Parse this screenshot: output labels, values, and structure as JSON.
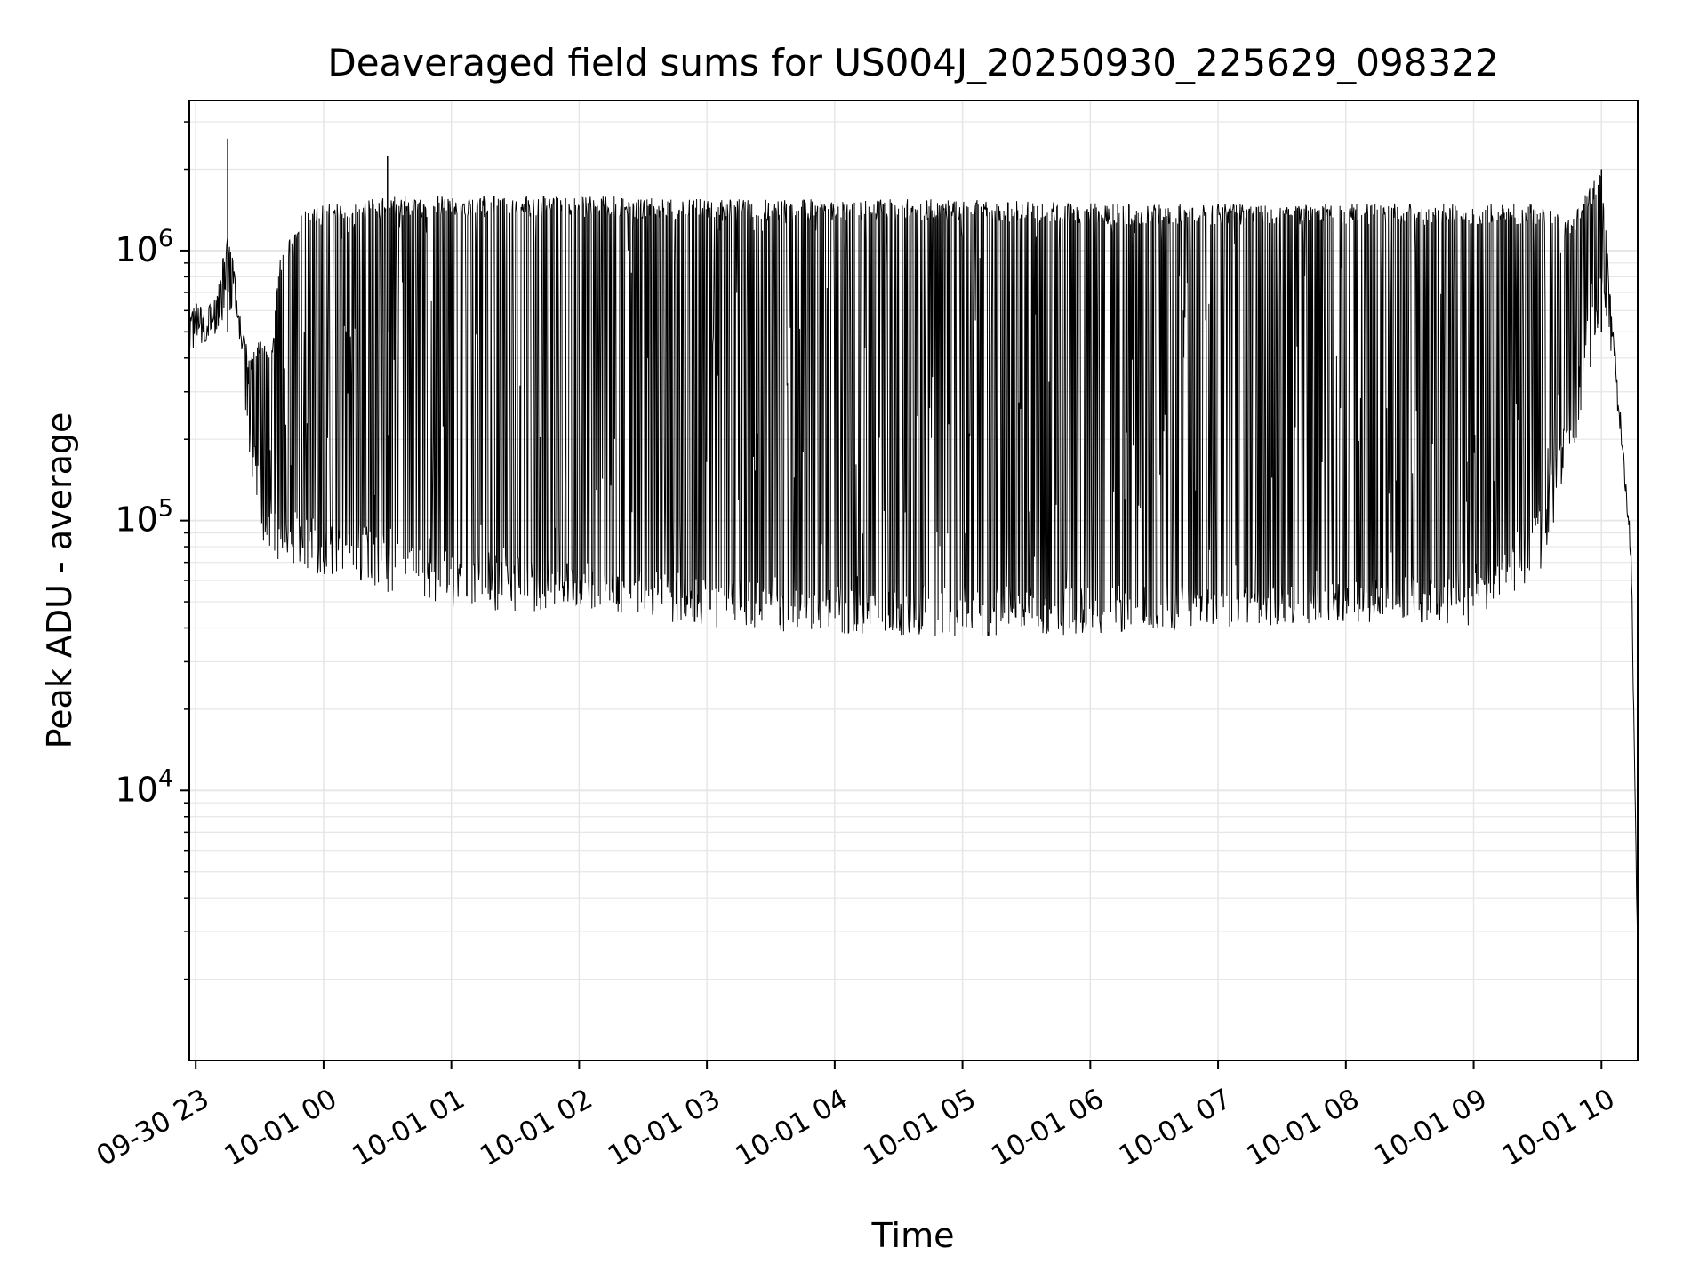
{
  "chart_data": {
    "type": "line",
    "title": "Deaveraged field sums for US004J_20250930_225629_098322",
    "xlabel": "Time",
    "ylabel": "Peak ADU - average",
    "x_tick_labels": [
      "09-30 23",
      "10-01 00",
      "10-01 01",
      "10-01 02",
      "10-01 03",
      "10-01 04",
      "10-01 05",
      "10-01 06",
      "10-01 07",
      "10-01 08",
      "10-01 09",
      "10-01 10"
    ],
    "y_tick_labels": [
      {
        "base": "10",
        "exp": "4",
        "value": 10000
      },
      {
        "base": "10",
        "exp": "5",
        "value": 100000
      },
      {
        "base": "10",
        "exp": "6",
        "value": 1000000
      }
    ],
    "x_scale": "time",
    "y_scale": "log",
    "xlim": [
      "2025-09-30 22:57",
      "2025-10-01 10:17"
    ],
    "ylim": [
      1000,
      3600000
    ],
    "grid": true,
    "legend": "none",
    "line_color": "#000000",
    "grid_color": "#e6e6e6",
    "series": [
      {
        "x": [
          "2025-09-30 22:56:29",
          "2025-09-30 23:00",
          "2025-09-30 23:05",
          "2025-09-30 23:10",
          "2025-09-30 23:15",
          "2025-09-30 23:20",
          "2025-09-30 23:25",
          "2025-09-30 23:30",
          "2025-09-30 23:35",
          "2025-09-30 23:40",
          "2025-09-30 23:50",
          "2025-10-01 00:00",
          "2025-10-01 00:15",
          "2025-10-01 00:30",
          "2025-10-01 00:45",
          "2025-10-01 01:00",
          "2025-10-01 01:30",
          "2025-10-01 02:00",
          "2025-10-01 03:00",
          "2025-10-01 04:00",
          "2025-10-01 05:00",
          "2025-10-01 06:00",
          "2025-10-01 07:00",
          "2025-10-01 08:00",
          "2025-10-01 09:00",
          "2025-10-01 09:30",
          "2025-10-01 09:45",
          "2025-10-01 10:00",
          "2025-10-01 10:05",
          "2025-10-01 10:10",
          "2025-10-01 10:14",
          "2025-10-01 10:17"
        ],
        "y_baseline": [
          450000,
          550000,
          500000,
          600000,
          750000,
          620000,
          250000,
          160000,
          120000,
          110000,
          100000,
          95000,
          95000,
          85000,
          80000,
          75000,
          72000,
          68000,
          60000,
          55000,
          55000,
          55000,
          57000,
          57000,
          65000,
          100000,
          300000,
          800000,
          500000,
          200000,
          80000,
          2500
        ],
        "y_upper": [
          600000,
          650000,
          600000,
          700000,
          1200000,
          700000,
          400000,
          500000,
          400000,
          1000000,
          1400000,
          1500000,
          1500000,
          1600000,
          1600000,
          1600000,
          1600000,
          1600000,
          1550000,
          1550000,
          1550000,
          1500000,
          1500000,
          1500000,
          1500000,
          1500000,
          1300000,
          2000000,
          600000,
          200000,
          80000,
          2500
        ],
        "y_lower": [
          400000,
          450000,
          450000,
          500000,
          600000,
          500000,
          180000,
          90000,
          75000,
          70000,
          65000,
          62000,
          60000,
          52000,
          50000,
          48000,
          45000,
          48000,
          40000,
          38000,
          36000,
          38000,
          40000,
          42000,
          40000,
          60000,
          150000,
          600000,
          400000,
          150000,
          60000,
          2500
        ]
      }
    ],
    "peaks": [
      {
        "x": "2025-09-30 23:15",
        "y": 2600000
      },
      {
        "x": "2025-10-01 00:30",
        "y": 2250000
      },
      {
        "x": "2025-10-01 10:00",
        "y": 2000000
      }
    ]
  }
}
